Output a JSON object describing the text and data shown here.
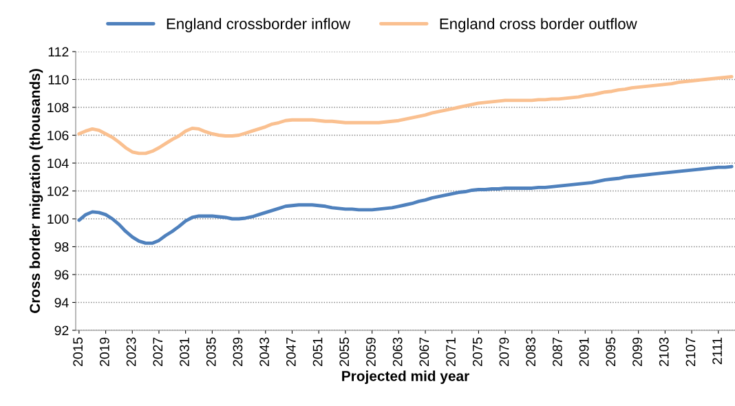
{
  "chart_data": {
    "type": "line",
    "xlabel": "Projected mid year",
    "ylabel": "Cross border migration (thousands)",
    "categories": [
      "2015",
      null,
      null,
      null,
      "2019",
      null,
      null,
      null,
      "2023",
      null,
      null,
      null,
      "2027",
      null,
      null,
      null,
      "2031",
      null,
      null,
      null,
      "2035",
      null,
      null,
      null,
      "2039",
      null,
      null,
      null,
      "2043",
      null,
      null,
      null,
      "2047",
      null,
      null,
      null,
      "2051",
      null,
      null,
      null,
      "2055",
      null,
      null,
      null,
      "2059",
      null,
      null,
      null,
      "2063",
      null,
      null,
      null,
      "2067",
      null,
      null,
      null,
      "2071",
      null,
      null,
      null,
      "2075",
      null,
      null,
      null,
      "2079",
      null,
      null,
      null,
      "2083",
      null,
      null,
      null,
      "2087",
      null,
      null,
      null,
      "2091",
      null,
      null,
      null,
      "2095",
      null,
      null,
      null,
      "2099",
      null,
      null,
      null,
      "2103",
      null,
      null,
      null,
      "2107",
      null,
      null,
      null,
      "2111",
      null,
      null
    ],
    "series": [
      {
        "name": "England crossborder inflow",
        "color": "#4f81bd",
        "values": [
          99.9,
          100.3,
          100.5,
          100.45,
          100.3,
          100.0,
          99.6,
          99.1,
          98.7,
          98.4,
          98.25,
          98.25,
          98.45,
          98.8,
          99.1,
          99.45,
          99.85,
          100.1,
          100.2,
          100.2,
          100.2,
          100.15,
          100.1,
          100.0,
          100.0,
          100.05,
          100.15,
          100.3,
          100.45,
          100.6,
          100.75,
          100.9,
          100.95,
          101.0,
          101.0,
          101.0,
          100.95,
          100.9,
          100.8,
          100.75,
          100.7,
          100.7,
          100.65,
          100.65,
          100.65,
          100.7,
          100.75,
          100.8,
          100.9,
          101.0,
          101.1,
          101.25,
          101.35,
          101.5,
          101.6,
          101.7,
          101.8,
          101.9,
          101.95,
          102.05,
          102.1,
          102.1,
          102.15,
          102.15,
          102.2,
          102.2,
          102.2,
          102.2,
          102.2,
          102.25,
          102.25,
          102.3,
          102.35,
          102.4,
          102.45,
          102.5,
          102.55,
          102.6,
          102.7,
          102.8,
          102.85,
          102.9,
          103.0,
          103.05,
          103.1,
          103.15,
          103.2,
          103.25,
          103.3,
          103.35,
          103.4,
          103.45,
          103.5,
          103.55,
          103.6,
          103.65,
          103.7,
          103.7,
          103.75
        ]
      },
      {
        "name": "England cross border outflow",
        "color": "#fac090",
        "values": [
          106.1,
          106.3,
          106.45,
          106.35,
          106.1,
          105.85,
          105.5,
          105.1,
          104.8,
          104.7,
          104.7,
          104.85,
          105.1,
          105.4,
          105.7,
          105.95,
          106.3,
          106.5,
          106.45,
          106.25,
          106.1,
          106.0,
          105.95,
          105.95,
          106.0,
          106.15,
          106.3,
          106.45,
          106.6,
          106.8,
          106.9,
          107.05,
          107.1,
          107.1,
          107.1,
          107.1,
          107.05,
          107.0,
          107.0,
          106.95,
          106.9,
          106.9,
          106.9,
          106.9,
          106.9,
          106.9,
          106.95,
          107.0,
          107.05,
          107.15,
          107.25,
          107.35,
          107.45,
          107.6,
          107.7,
          107.8,
          107.9,
          108.0,
          108.1,
          108.2,
          108.3,
          108.35,
          108.4,
          108.45,
          108.5,
          108.5,
          108.5,
          108.5,
          108.5,
          108.55,
          108.55,
          108.6,
          108.6,
          108.65,
          108.7,
          108.75,
          108.85,
          108.9,
          109.0,
          109.1,
          109.15,
          109.25,
          109.3,
          109.4,
          109.45,
          109.5,
          109.55,
          109.6,
          109.65,
          109.7,
          109.8,
          109.85,
          109.9,
          109.95,
          110.0,
          110.05,
          110.1,
          110.15,
          110.2
        ]
      }
    ],
    "ylim": [
      92,
      112
    ],
    "yticks": [
      92,
      94,
      96,
      98,
      100,
      102,
      104,
      106,
      108,
      110,
      112
    ],
    "grid": "y",
    "legend": "top",
    "line_style": "solid"
  }
}
